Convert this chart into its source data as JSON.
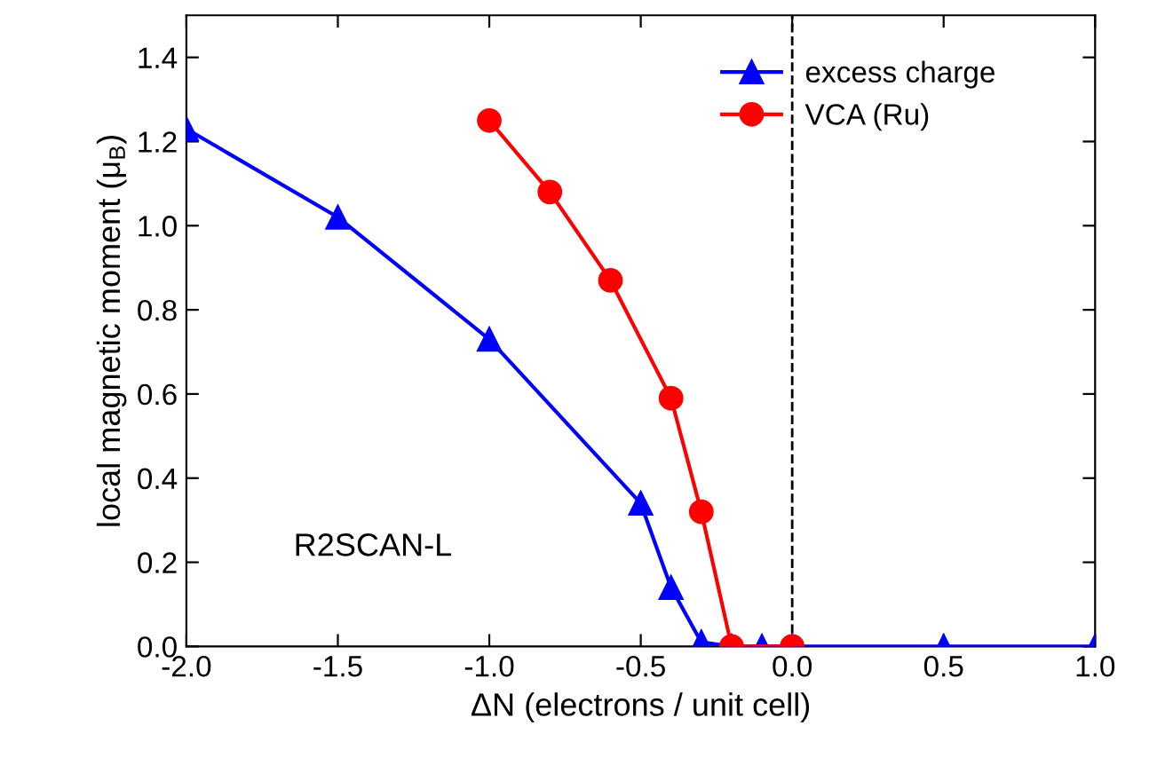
{
  "chart_data": {
    "type": "line",
    "xlabel": "ΔN (electrons / unit cell)",
    "ylabel": "local magnetic moment (μ$_{B}$)",
    "xlim": [
      -2.0,
      1.0
    ],
    "xticks": [
      {
        "value": -2,
        "label": "-2.0"
      },
      -1.5,
      {
        "value": -1,
        "label": "-1.0"
      },
      -0.5,
      {
        "value": 0,
        "label": "0.0"
      },
      0.5,
      {
        "value": 1,
        "label": "1.0"
      }
    ],
    "ylim": [
      0.0,
      1.5
    ],
    "yticks": [
      {
        "value": 0,
        "label": "0.0"
      },
      0.2,
      0.4,
      0.6,
      0.8,
      {
        "value": 1,
        "label": "1.0"
      },
      1.2,
      1.4
    ],
    "grid": false,
    "legend": "top right",
    "line_style": "solid",
    "series": [
      {
        "name": "excess charge",
        "color": "#0000ff",
        "marker": "triangle",
        "x": [
          -2.0,
          -1.5,
          -1.0,
          -0.5,
          -0.4,
          -0.3,
          -0.2,
          -0.1,
          0.0,
          0.5,
          1.0
        ],
        "values": [
          1.23,
          1.02,
          0.73,
          0.34,
          0.14,
          0.01,
          0.0,
          0.0,
          0.0,
          0.0,
          0.0
        ]
      },
      {
        "name": "VCA (Ru)",
        "color": "#ff0000",
        "marker": "circle",
        "x": [
          -1.0,
          -0.8,
          -0.6,
          -0.4,
          -0.3,
          -0.2,
          0.0
        ],
        "values": [
          1.25,
          1.08,
          0.87,
          0.59,
          0.32,
          0.0,
          0.0
        ]
      }
    ],
    "ref_lines": [
      {
        "axis": "x",
        "value": 0.0,
        "color": "#000000",
        "line_style": "dashed"
      }
    ],
    "annotations": [
      "R2SCAN-L"
    ]
  }
}
